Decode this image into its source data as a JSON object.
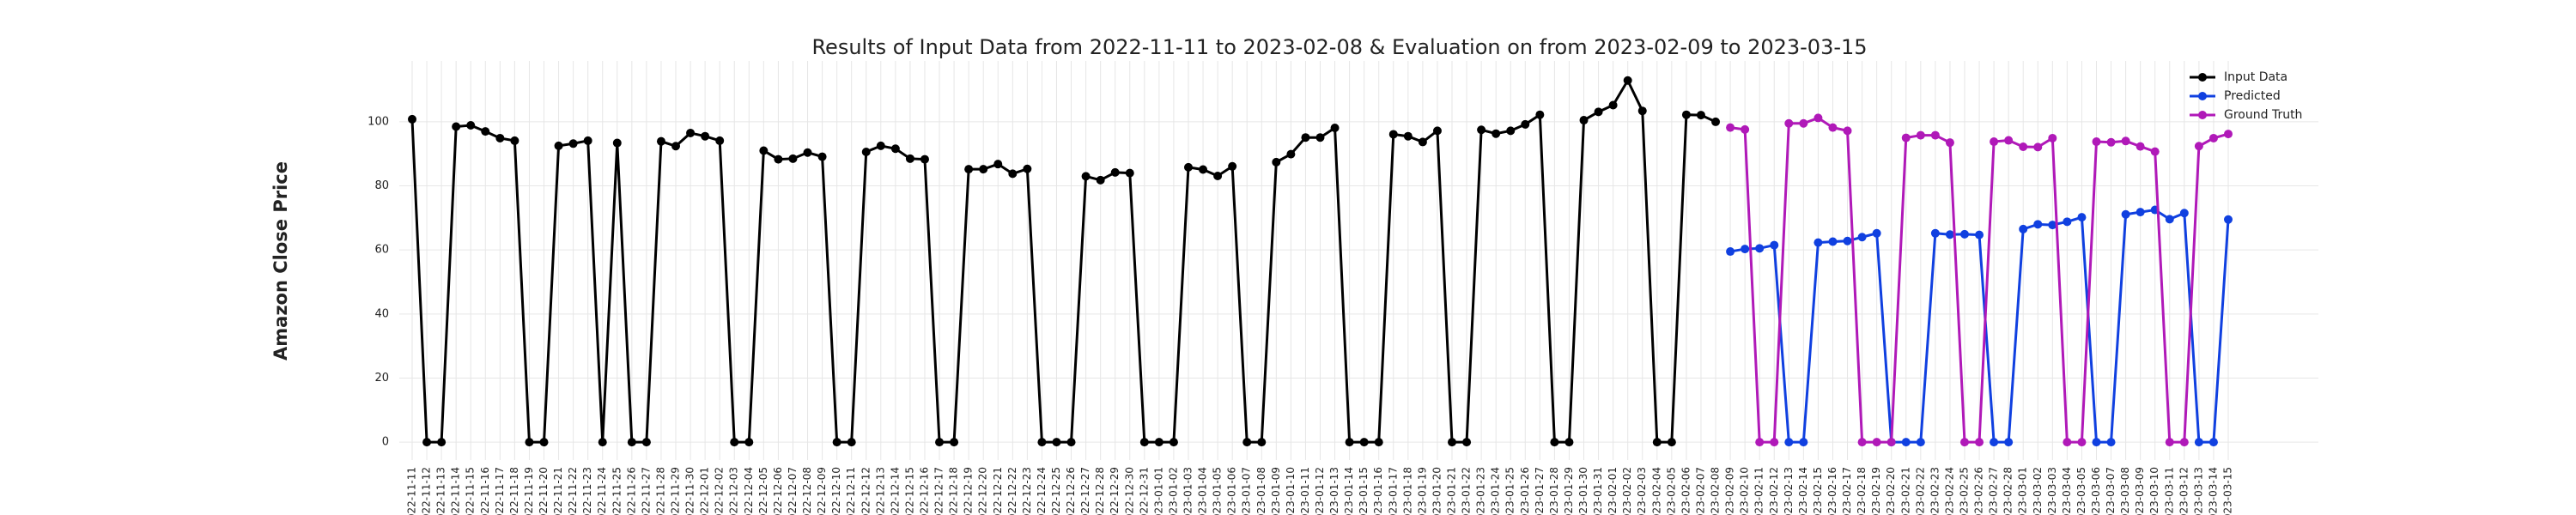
{
  "chart_data": {
    "type": "line",
    "title": "Results of Input Data from 2022-11-11 to 2023-02-08 & Evaluation on from 2023-02-09 to 2023-03-15",
    "y_label": "Amazon Close Price",
    "categories": [
      "2022-11-11",
      "2022-11-12",
      "2022-11-13",
      "2022-11-14",
      "2022-11-15",
      "2022-11-16",
      "2022-11-17",
      "2022-11-18",
      "2022-11-19",
      "2022-11-20",
      "2022-11-21",
      "2022-11-22",
      "2022-11-23",
      "2022-11-24",
      "2022-11-25",
      "2022-11-26",
      "2022-11-27",
      "2022-11-28",
      "2022-11-29",
      "2022-11-30",
      "2022-12-01",
      "2022-12-02",
      "2022-12-03",
      "2022-12-04",
      "2022-12-05",
      "2022-12-06",
      "2022-12-07",
      "2022-12-08",
      "2022-12-09",
      "2022-12-10",
      "2022-12-11",
      "2022-12-12",
      "2022-12-13",
      "2022-12-14",
      "2022-12-15",
      "2022-12-16",
      "2022-12-17",
      "2022-12-18",
      "2022-12-19",
      "2022-12-20",
      "2022-12-21",
      "2022-12-22",
      "2022-12-23",
      "2022-12-24",
      "2022-12-25",
      "2022-12-26",
      "2022-12-27",
      "2022-12-28",
      "2022-12-29",
      "2022-12-30",
      "2022-12-31",
      "2023-01-01",
      "2023-01-02",
      "2023-01-03",
      "2023-01-04",
      "2023-01-05",
      "2023-01-06",
      "2023-01-07",
      "2023-01-08",
      "2023-01-09",
      "2023-01-10",
      "2023-01-11",
      "2023-01-12",
      "2023-01-13",
      "2023-01-14",
      "2023-01-15",
      "2023-01-16",
      "2023-01-17",
      "2023-01-18",
      "2023-01-19",
      "2023-01-20",
      "2023-01-21",
      "2023-01-22",
      "2023-01-23",
      "2023-01-24",
      "2023-01-25",
      "2023-01-26",
      "2023-01-27",
      "2023-01-28",
      "2023-01-29",
      "2023-01-30",
      "2023-01-31",
      "2023-02-01",
      "2023-02-02",
      "2023-02-03",
      "2023-02-04",
      "2023-02-05",
      "2023-02-06",
      "2023-02-07",
      "2023-02-08",
      "2023-02-09",
      "2023-02-10",
      "2023-02-11",
      "2023-02-12",
      "2023-02-13",
      "2023-02-14",
      "2023-02-15",
      "2023-02-16",
      "2023-02-17",
      "2023-02-18",
      "2023-02-19",
      "2023-02-20",
      "2023-02-21",
      "2023-02-22",
      "2023-02-23",
      "2023-02-24",
      "2023-02-25",
      "2023-02-26",
      "2023-02-27",
      "2023-02-28",
      "2023-03-01",
      "2023-03-02",
      "2023-03-03",
      "2023-03-04",
      "2023-03-05",
      "2023-03-06",
      "2023-03-07",
      "2023-03-08",
      "2023-03-09",
      "2023-03-10",
      "2023-03-11",
      "2023-03-12",
      "2023-03-13",
      "2023-03-14",
      "2023-03-15"
    ],
    "series": [
      {
        "name": "Input Data",
        "color": "#000000",
        "values": [
          100.8,
          0,
          0,
          98.5,
          98.9,
          97,
          94.9,
          94.1,
          0,
          0,
          92.5,
          93.2,
          94.1,
          0,
          93.4,
          0,
          0,
          93.9,
          92.4,
          96.5,
          95.5,
          94.1,
          0,
          0,
          91,
          88.3,
          88.5,
          90.4,
          89.1,
          0,
          0,
          90.6,
          92.5,
          91.6,
          88.5,
          88.3,
          0,
          0,
          85.2,
          85.2,
          86.8,
          83.8,
          85.3,
          0,
          0,
          0,
          83,
          81.8,
          84.2,
          84,
          0,
          0,
          0,
          85.8,
          85.1,
          83.1,
          86.1,
          0,
          0,
          87.4,
          89.9,
          95.1,
          95.1,
          98.1,
          0,
          0,
          0,
          96.1,
          95.5,
          93.7,
          97.2,
          0,
          0,
          97.5,
          96.3,
          97.2,
          99.2,
          102.2,
          0,
          0,
          100.5,
          103.1,
          105.2,
          112.9,
          103.4,
          0,
          0,
          102.2,
          102.1,
          100,
          null,
          null,
          null,
          null,
          null,
          null,
          null,
          null,
          null,
          null,
          null,
          null,
          null,
          null,
          null,
          null,
          null,
          null,
          null,
          null,
          null,
          null,
          null,
          null,
          null,
          null,
          null,
          null,
          null,
          null,
          null,
          null,
          null,
          null,
          null
        ]
      },
      {
        "name": "Predicted",
        "color": "#1040e0",
        "values": [
          null,
          null,
          null,
          null,
          null,
          null,
          null,
          null,
          null,
          null,
          null,
          null,
          null,
          null,
          null,
          null,
          null,
          null,
          null,
          null,
          null,
          null,
          null,
          null,
          null,
          null,
          null,
          null,
          null,
          null,
          null,
          null,
          null,
          null,
          null,
          null,
          null,
          null,
          null,
          null,
          null,
          null,
          null,
          null,
          null,
          null,
          null,
          null,
          null,
          null,
          null,
          null,
          null,
          null,
          null,
          null,
          null,
          null,
          null,
          null,
          null,
          null,
          null,
          null,
          null,
          null,
          null,
          null,
          null,
          null,
          null,
          null,
          null,
          null,
          null,
          null,
          null,
          null,
          null,
          null,
          null,
          null,
          null,
          null,
          null,
          null,
          null,
          null,
          null,
          null,
          59.5,
          60.3,
          60.5,
          61.5,
          0,
          0,
          62.3,
          62.6,
          62.8,
          64,
          65.2,
          0,
          0,
          0,
          65.2,
          64.8,
          64.9,
          64.7,
          0,
          0,
          66.5,
          68,
          67.8,
          68.8,
          70.2,
          0,
          0,
          71.1,
          71.8,
          72.5,
          69.6,
          71.5,
          0,
          0,
          69.5
        ]
      },
      {
        "name": "Ground Truth",
        "color": "#b019b8",
        "values": [
          null,
          null,
          null,
          null,
          null,
          null,
          null,
          null,
          null,
          null,
          null,
          null,
          null,
          null,
          null,
          null,
          null,
          null,
          null,
          null,
          null,
          null,
          null,
          null,
          null,
          null,
          null,
          null,
          null,
          null,
          null,
          null,
          null,
          null,
          null,
          null,
          null,
          null,
          null,
          null,
          null,
          null,
          null,
          null,
          null,
          null,
          null,
          null,
          null,
          null,
          null,
          null,
          null,
          null,
          null,
          null,
          null,
          null,
          null,
          null,
          null,
          null,
          null,
          null,
          null,
          null,
          null,
          null,
          null,
          null,
          null,
          null,
          null,
          null,
          null,
          null,
          null,
          null,
          null,
          null,
          null,
          null,
          null,
          null,
          null,
          null,
          null,
          null,
          null,
          null,
          98.2,
          97.6,
          0,
          0,
          99.5,
          99.5,
          101.2,
          98.2,
          97.2,
          0,
          0,
          0,
          95,
          95.8,
          95.8,
          93.5,
          0,
          0,
          93.8,
          94.2,
          92.2,
          92.1,
          94.9,
          0,
          0,
          93.8,
          93.6,
          94,
          92.3,
          90.7,
          0,
          0,
          92.4,
          94.9,
          96.2
        ]
      }
    ],
    "ylim": [
      -5.6,
      119
    ],
    "yticks": [
      0,
      20,
      40,
      60,
      80,
      100
    ],
    "grid": true,
    "legend": "upper right"
  }
}
